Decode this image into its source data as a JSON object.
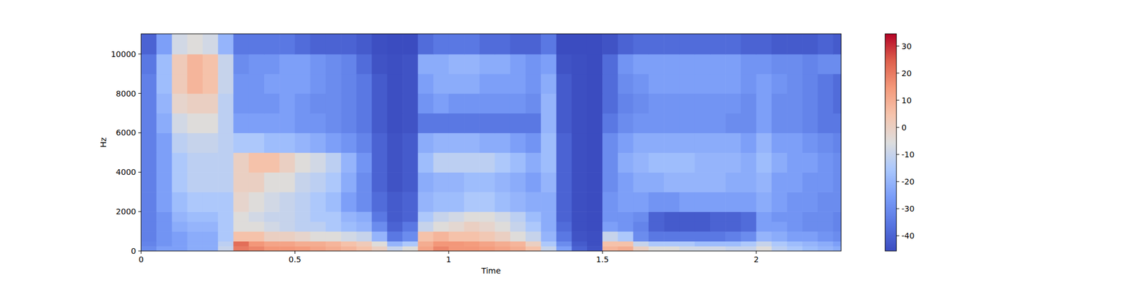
{
  "chart_data": {
    "type": "heatmap",
    "xlabel": "Time",
    "ylabel": "Hz",
    "xlim": [
      0,
      2.276
    ],
    "ylim": [
      0,
      11025
    ],
    "xticks": [
      0,
      0.5,
      1,
      1.5,
      2
    ],
    "yticks": [
      0,
      2000,
      4000,
      6000,
      8000,
      10000
    ],
    "x_bins": [
      0,
      0.05,
      0.1,
      0.15,
      0.2,
      0.25,
      0.3,
      0.35,
      0.4,
      0.45,
      0.5,
      0.55,
      0.6,
      0.65,
      0.7,
      0.75,
      0.8,
      0.85,
      0.9,
      0.95,
      1,
      1.05,
      1.1,
      1.15,
      1.2,
      1.25,
      1.3,
      1.35,
      1.4,
      1.45,
      1.5,
      1.55,
      1.6,
      1.65,
      1.7,
      1.75,
      1.8,
      1.85,
      1.9,
      1.95,
      2,
      2.05,
      2.1,
      2.15,
      2.2,
      2.25,
      2.276
    ],
    "y_bins": [
      0,
      250,
      500,
      1000,
      1500,
      2000,
      3000,
      4000,
      5000,
      6000,
      7000,
      8000,
      9000,
      10000,
      11025
    ],
    "cells": [
      [
        -30,
        -25,
        -25,
        -22,
        -22,
        -10,
        20,
        18,
        15,
        15,
        14,
        12,
        10,
        8,
        5,
        0,
        -10,
        -5,
        12,
        18,
        15,
        15,
        14,
        12,
        10,
        5,
        -10,
        -25,
        -40,
        -44,
        8,
        10,
        0,
        -5,
        -5,
        -8,
        -8,
        -8,
        -10,
        -10,
        -5,
        -12,
        -15,
        -18,
        -20,
        -22
      ],
      [
        -32,
        -28,
        -25,
        -22,
        -22,
        -12,
        22,
        15,
        12,
        12,
        10,
        10,
        8,
        5,
        2,
        -5,
        -20,
        -15,
        10,
        15,
        15,
        14,
        12,
        10,
        8,
        0,
        -15,
        -30,
        -42,
        -45,
        5,
        5,
        -10,
        -15,
        -15,
        -15,
        -18,
        -18,
        -18,
        -15,
        -10,
        -15,
        -18,
        -20,
        -22,
        -25
      ],
      [
        -33,
        -28,
        -25,
        -22,
        -22,
        -15,
        5,
        5,
        0,
        0,
        -2,
        -5,
        -5,
        -8,
        -10,
        -20,
        -35,
        -30,
        5,
        8,
        5,
        5,
        3,
        0,
        -5,
        -10,
        -20,
        -35,
        -44,
        -45,
        -10,
        -15,
        -30,
        -35,
        -35,
        -35,
        -35,
        -35,
        -33,
        -30,
        -20,
        -22,
        -25,
        -25,
        -28,
        -30
      ],
      [
        -33,
        -28,
        -22,
        -20,
        -20,
        -15,
        -5,
        -5,
        -8,
        -10,
        -12,
        -12,
        -15,
        -18,
        -20,
        -30,
        -40,
        -35,
        -10,
        -5,
        -3,
        0,
        -2,
        -5,
        -10,
        -15,
        -22,
        -38,
        -45,
        -46,
        -25,
        -28,
        -32,
        -40,
        -42,
        -42,
        -42,
        -40,
        -40,
        -38,
        -25,
        -25,
        -28,
        -30,
        -30,
        -32
      ],
      [
        -33,
        -28,
        -20,
        -18,
        -18,
        -15,
        -5,
        -8,
        -10,
        -10,
        -12,
        -15,
        -15,
        -20,
        -22,
        -35,
        -42,
        -40,
        -15,
        -10,
        -8,
        -5,
        -5,
        -8,
        -12,
        -18,
        -22,
        -40,
        -45,
        -46,
        -28,
        -28,
        -30,
        -40,
        -42,
        -42,
        -42,
        -40,
        -40,
        -38,
        -25,
        -28,
        -28,
        -30,
        -30,
        -32
      ],
      [
        -33,
        -25,
        -18,
        -15,
        -15,
        -15,
        -2,
        -5,
        -8,
        -10,
        -12,
        -15,
        -18,
        -25,
        -30,
        -38,
        -42,
        -40,
        -20,
        -18,
        -18,
        -15,
        -15,
        -18,
        -20,
        -22,
        -22,
        -40,
        -45,
        -46,
        -28,
        -25,
        -25,
        -28,
        -28,
        -25,
        -25,
        -25,
        -25,
        -25,
        -22,
        -25,
        -28,
        -28,
        -30,
        -30
      ],
      [
        -33,
        -25,
        -15,
        -12,
        -12,
        -12,
        0,
        0,
        -5,
        -5,
        -10,
        -12,
        -15,
        -22,
        -30,
        -40,
        -44,
        -42,
        -22,
        -20,
        -20,
        -18,
        -18,
        -20,
        -22,
        -25,
        -20,
        -40,
        -45,
        -46,
        -30,
        -25,
        -22,
        -22,
        -20,
        -20,
        -20,
        -20,
        -22,
        -22,
        -20,
        -25,
        -25,
        -28,
        -28,
        -30
      ],
      [
        -33,
        -25,
        -15,
        -12,
        -12,
        -12,
        0,
        5,
        5,
        0,
        -5,
        -8,
        -12,
        -20,
        -28,
        -40,
        -44,
        -42,
        -18,
        -12,
        -12,
        -12,
        -12,
        -15,
        -18,
        -22,
        -18,
        -40,
        -45,
        -46,
        -30,
        -22,
        -20,
        -18,
        -18,
        -18,
        -20,
        -20,
        -20,
        -22,
        -18,
        -22,
        -25,
        -25,
        -28,
        -30
      ],
      [
        -33,
        -25,
        -12,
        -10,
        -10,
        -12,
        -15,
        -15,
        -18,
        -18,
        -20,
        -22,
        -25,
        -28,
        -32,
        -40,
        -44,
        -42,
        -22,
        -20,
        -20,
        -20,
        -22,
        -22,
        -25,
        -28,
        -18,
        -40,
        -45,
        -46,
        -30,
        -25,
        -22,
        -22,
        -22,
        -22,
        -22,
        -22,
        -22,
        -25,
        -20,
        -25,
        -25,
        -28,
        -30,
        -32
      ],
      [
        -33,
        -22,
        -8,
        -5,
        -5,
        -12,
        -25,
        -25,
        -25,
        -25,
        -28,
        -28,
        -30,
        -32,
        -35,
        -42,
        -45,
        -44,
        -35,
        -35,
        -35,
        -35,
        -35,
        -35,
        -35,
        -35,
        -20,
        -42,
        -45,
        -46,
        -35,
        -30,
        -28,
        -28,
        -28,
        -28,
        -28,
        -28,
        -30,
        -30,
        -25,
        -30,
        -30,
        -32,
        -35,
        -35
      ],
      [
        -33,
        -20,
        -2,
        0,
        0,
        -12,
        -28,
        -28,
        -28,
        -25,
        -28,
        -30,
        -30,
        -32,
        -35,
        -42,
        -45,
        -44,
        -28,
        -25,
        -28,
        -28,
        -28,
        -28,
        -28,
        -30,
        -20,
        -42,
        -45,
        -46,
        -38,
        -32,
        -30,
        -28,
        -28,
        -28,
        -28,
        -28,
        -28,
        -30,
        -25,
        -30,
        -30,
        -32,
        -35,
        -38
      ],
      [
        -33,
        -18,
        2,
        8,
        5,
        -10,
        -28,
        -28,
        -25,
        -25,
        -25,
        -28,
        -30,
        -32,
        -35,
        -42,
        -45,
        -44,
        -25,
        -22,
        -22,
        -22,
        -25,
        -25,
        -25,
        -28,
        -22,
        -42,
        -45,
        -46,
        -38,
        -30,
        -28,
        -25,
        -25,
        -25,
        -25,
        -25,
        -25,
        -28,
        -25,
        -28,
        -30,
        -32,
        -35,
        -38
      ],
      [
        -35,
        -18,
        2,
        8,
        5,
        -10,
        -30,
        -28,
        -28,
        -25,
        -25,
        -28,
        -30,
        -32,
        -38,
        -44,
        -45,
        -44,
        -22,
        -22,
        -20,
        -20,
        -22,
        -22,
        -25,
        -28,
        -25,
        -44,
        -45,
        -46,
        -38,
        -28,
        -25,
        -25,
        -25,
        -25,
        -25,
        -25,
        -25,
        -28,
        -28,
        -30,
        -30,
        -32,
        -30,
        -30
      ],
      [
        -40,
        -25,
        -8,
        -5,
        -8,
        -20,
        -35,
        -35,
        -35,
        -35,
        -38,
        -40,
        -40,
        -40,
        -42,
        -45,
        -46,
        -46,
        -38,
        -35,
        -35,
        -35,
        -38,
        -38,
        -40,
        -40,
        -35,
        -46,
        -46,
        -46,
        -44,
        -40,
        -38,
        -38,
        -38,
        -38,
        -38,
        -38,
        -38,
        -40,
        -40,
        -42,
        -42,
        -42,
        -40,
        -42
      ]
    ],
    "colorbar_range": [
      -45.6,
      34.5
    ],
    "colorbar_ticks": [
      -40,
      -30,
      -20,
      -10,
      0,
      10,
      20,
      30
    ]
  }
}
